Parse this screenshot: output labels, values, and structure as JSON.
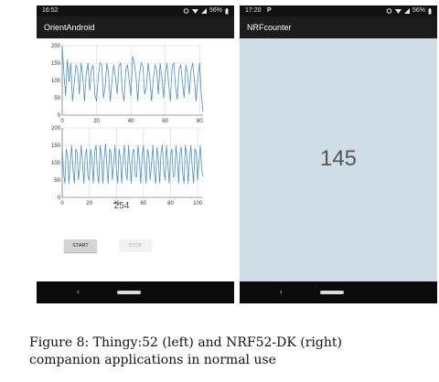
{
  "left_phone": {
    "status_time": "16:52",
    "status_battery": "56%",
    "app_title": "OrientAndroid",
    "count_label": "254",
    "start_label": "START",
    "stop_label": "STOP"
  },
  "right_phone": {
    "status_time": "17:20",
    "status_battery": "56%",
    "app_title": "NRFcounter",
    "count_value": "145"
  },
  "nav_back_label": "‹",
  "caption_line1": "Figure 8:  Thingy:52 (left) and NRF52-DK (right)",
  "caption_line2": "companion applications in normal use",
  "colors": {
    "statusbar": "#111111",
    "appbar": "#1c1c1c",
    "line": "#4a90c8",
    "grid": "#d0d0d0",
    "right_bg": "#cfdde6"
  },
  "icons": [
    "p-notification-icon",
    "data-sync-icon",
    "wifi-icon",
    "signal-icon",
    "battery-icon",
    "back-icon",
    "home-pill-icon"
  ],
  "chart_data": [
    {
      "type": "line",
      "ylim": [
        0,
        200
      ],
      "xlim": [
        0,
        82
      ],
      "y_ticks": [
        "0",
        "50",
        "100",
        "150",
        "200"
      ],
      "x_ticks": [
        "0",
        "20",
        "40",
        "60",
        "80"
      ],
      "grid": true,
      "series": [
        {
          "values": [
            200,
            120,
            55,
            160,
            95,
            150,
            40,
            90,
            145,
            130,
            60,
            150,
            110,
            40,
            120,
            150,
            70,
            130,
            145,
            60,
            40,
            110,
            150,
            145,
            50,
            80,
            150,
            120,
            40,
            100,
            145,
            110,
            60,
            140,
            150,
            70,
            40,
            130,
            145,
            100,
            55,
            170,
            150,
            110,
            40,
            120,
            150,
            140,
            60,
            80,
            150,
            110,
            40,
            100,
            145,
            130,
            60,
            150,
            110,
            50,
            120,
            150,
            90,
            40,
            140,
            150,
            80,
            45,
            130,
            145,
            95,
            50,
            145,
            120,
            60,
            130,
            150,
            100,
            40,
            110,
            150,
            60,
            10
          ]
        }
      ]
    },
    {
      "type": "line",
      "ylim": [
        0,
        200
      ],
      "xlim": [
        0,
        104
      ],
      "y_ticks": [
        "0",
        "50",
        "100",
        "150",
        "200"
      ],
      "x_ticks": [
        "0",
        "20",
        "40",
        "60",
        "80",
        "100"
      ],
      "grid": true,
      "series": [
        {
          "values": [
            140,
            70,
            40,
            140,
            120,
            40,
            100,
            150,
            80,
            40,
            140,
            130,
            50,
            90,
            150,
            100,
            40,
            120,
            140,
            60,
            50,
            140,
            110,
            40,
            130,
            150,
            70,
            40,
            150,
            120,
            40,
            110,
            155,
            90,
            40,
            140,
            130,
            50,
            100,
            150,
            80,
            40,
            140,
            110,
            40,
            120,
            150,
            70,
            50,
            150,
            100,
            40,
            130,
            140,
            60,
            60,
            150,
            110,
            40,
            120,
            150,
            90,
            40,
            140,
            120,
            50,
            100,
            150,
            70,
            40,
            145,
            110,
            40,
            130,
            150,
            80,
            50,
            150,
            100,
            40,
            120,
            140,
            60,
            60,
            150,
            110,
            40,
            130,
            145,
            70,
            40,
            150,
            120,
            40,
            110,
            150,
            90,
            40,
            140,
            130,
            50,
            100,
            150,
            80,
            60
          ]
        }
      ]
    }
  ]
}
